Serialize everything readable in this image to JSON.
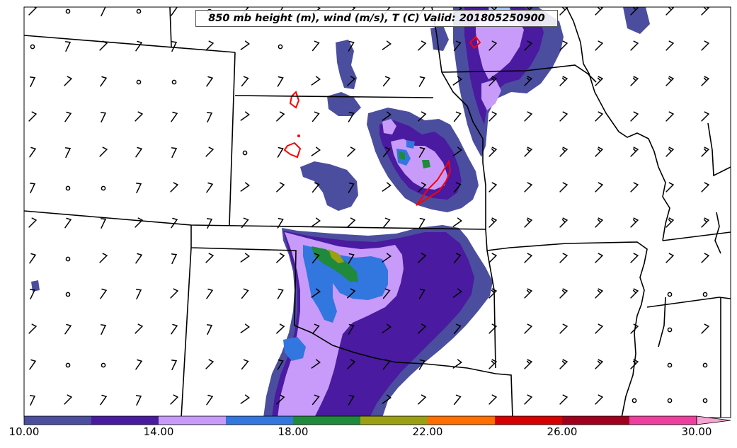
{
  "title": "850 mb height (m), wind (m/s), T (C) Valid: 201805250900",
  "colorbar": {
    "colors": [
      "#4b4e9e",
      "#4a1aa0",
      "#c89bfa",
      "#3276e0",
      "#1f8a3c",
      "#9aa012",
      "#ff6e00",
      "#d70000",
      "#a0001e",
      "#ee3f9e",
      "#f7a4d4"
    ],
    "tick_labels": [
      "10.00",
      "14.00",
      "18.00",
      "22.00",
      "26.00",
      "30.00"
    ]
  },
  "map_layers": {
    "boundary_color": "#000000",
    "contour_color": "#ff0000",
    "barb_color": "#000000"
  }
}
